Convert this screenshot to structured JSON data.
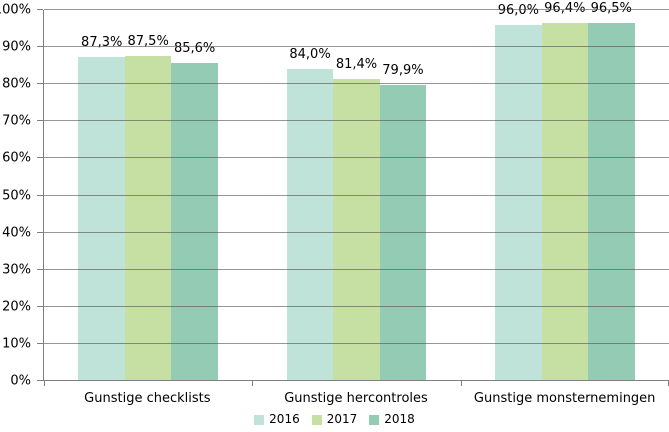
{
  "chart_data": {
    "type": "bar",
    "title": "",
    "xlabel": "",
    "ylabel": "",
    "categories": [
      "Gunstige checklists",
      "Gunstige hercontroles",
      "Gunstige monsternemingen"
    ],
    "series": [
      {
        "name": "2016",
        "color": "#bfe2d9",
        "values": [
          87.3,
          84.0,
          96.0
        ],
        "labels": [
          "87,3%",
          "84,0%",
          "96,0%"
        ]
      },
      {
        "name": "2017",
        "color": "#c6e0a4",
        "values": [
          87.5,
          81.4,
          96.4
        ],
        "labels": [
          "87,5%",
          "81,4%",
          "96,4%"
        ]
      },
      {
        "name": "2018",
        "color": "#94cbb4",
        "values": [
          85.6,
          79.9,
          96.5
        ],
        "labels": [
          "85,6%",
          "79,9%",
          "96,5%"
        ]
      }
    ],
    "ylim": [
      0,
      100
    ],
    "ytick_step": 10,
    "ytick_labels": [
      "0%",
      "10%",
      "20%",
      "30%",
      "40%",
      "50%",
      "60%",
      "70%",
      "80%",
      "90%",
      "100%"
    ],
    "grid": true,
    "legend_position": "bottom"
  },
  "colors": {
    "background": "#ffffff",
    "axis": "#7f7f7f",
    "gridline": "#8c8c8c",
    "text": "#000000",
    "series_2016": "#bfe2d9",
    "series_2017": "#c6e0a4",
    "series_2018": "#94cbb4"
  }
}
